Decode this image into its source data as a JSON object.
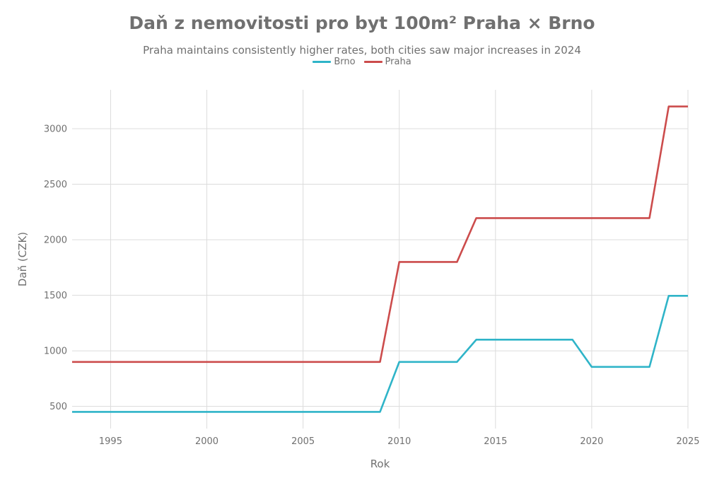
{
  "chart_data": {
    "type": "line",
    "title": "Daň z nemovitosti pro byt 100m² Praha × Brno",
    "subtitle": "Praha maintains consistently higher rates, both cities saw major increases in 2024",
    "xlabel": "Rok",
    "ylabel": "Daň (CZK)",
    "xlim": [
      1993,
      2025
    ],
    "ylim": [
      300,
      3350
    ],
    "x_ticks": [
      1995,
      2000,
      2005,
      2010,
      2015,
      2020,
      2025
    ],
    "y_ticks": [
      500,
      1000,
      1500,
      2000,
      2500,
      3000
    ],
    "grid": true,
    "legend_position": "top-center",
    "series": [
      {
        "name": "Brno",
        "color": "#2fb4c8",
        "points": [
          [
            1993,
            450
          ],
          [
            2009,
            450
          ],
          [
            2010,
            900
          ],
          [
            2013,
            900
          ],
          [
            2014,
            1100
          ],
          [
            2019,
            1100
          ],
          [
            2020,
            855
          ],
          [
            2023,
            855
          ],
          [
            2024,
            1495
          ],
          [
            2025,
            1495
          ]
        ]
      },
      {
        "name": "Praha",
        "color": "#cc4c4c",
        "points": [
          [
            1993,
            900
          ],
          [
            2009,
            900
          ],
          [
            2010,
            1800
          ],
          [
            2013,
            1800
          ],
          [
            2014,
            2195
          ],
          [
            2023,
            2195
          ],
          [
            2024,
            3200
          ],
          [
            2025,
            3200
          ]
        ]
      }
    ]
  }
}
